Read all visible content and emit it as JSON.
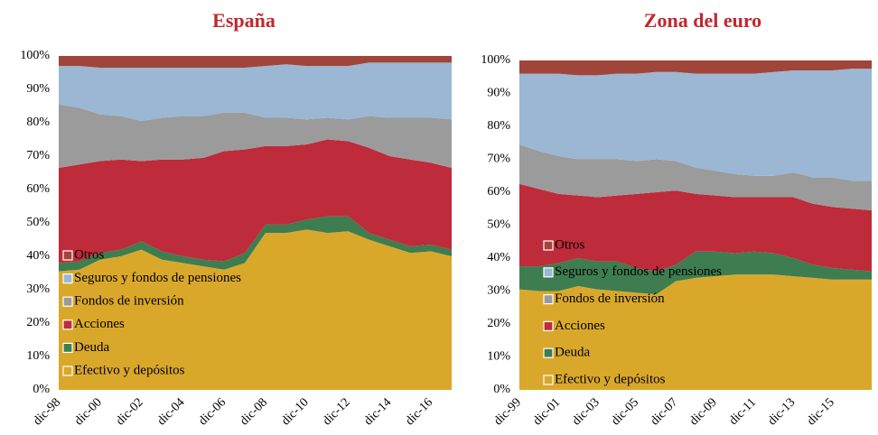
{
  "chart_data": [
    {
      "type": "stacked_area",
      "title": "España",
      "categories": [
        "dic-98",
        null,
        "dic-00",
        null,
        "dic-02",
        null,
        "dic-04",
        null,
        "dic-06",
        null,
        "dic-08",
        null,
        "dic-10",
        null,
        "dic-12",
        null,
        "dic-14",
        null,
        "dic-16",
        null
      ],
      "series": [
        {
          "name": "Efectivo y depósitos",
          "color": "#D9A82B",
          "values": [
            35.5,
            36,
            39,
            40,
            42,
            39,
            38,
            37,
            36,
            38,
            47,
            47,
            48,
            47,
            47.5,
            45,
            43,
            41,
            41.5,
            40
          ]
        },
        {
          "name": "Deuda",
          "color": "#3E7D4F",
          "values": [
            2.5,
            2.5,
            2,
            2,
            2.5,
            2.5,
            2,
            2,
            2.5,
            3,
            2.5,
            2.5,
            3,
            5,
            4.5,
            2,
            2,
            2,
            2,
            2
          ]
        },
        {
          "name": "Acciones",
          "color": "#BE2B3A",
          "values": [
            28.5,
            29,
            27.5,
            27,
            24,
            27.5,
            29,
            30.5,
            33,
            31,
            23.5,
            23.5,
            22.5,
            23,
            22.5,
            25.5,
            25,
            26,
            24.5,
            24.5
          ]
        },
        {
          "name": "Fondos de inversión",
          "color": "#9B9B9B",
          "values": [
            19,
            17,
            14,
            13,
            12,
            12.5,
            13,
            12.5,
            11.5,
            11,
            8.5,
            8.5,
            7.5,
            6.5,
            6.5,
            9.5,
            11.5,
            12.5,
            13.5,
            14.5
          ]
        },
        {
          "name": "Seguros y fondos de pensiones",
          "color": "#9BB7D4",
          "values": [
            11.5,
            12.5,
            14,
            14.5,
            16,
            15,
            14.5,
            14.5,
            13.5,
            13.5,
            15.5,
            16,
            16,
            15.5,
            16,
            16,
            16.5,
            16.5,
            16.5,
            17
          ]
        },
        {
          "name": "Otros",
          "color": "#A0453A",
          "values": [
            3,
            3,
            3.5,
            3.5,
            3.5,
            3.5,
            3.5,
            3.5,
            3.5,
            3.5,
            3,
            2.5,
            3,
            3,
            3,
            2,
            2,
            2,
            2,
            2
          ]
        }
      ],
      "ylim": [
        0,
        100
      ],
      "yticks": [
        {
          "value": 0,
          "label": "0%"
        },
        {
          "value": 10,
          "label": "10%"
        },
        {
          "value": 20,
          "label": "20%"
        },
        {
          "value": 30,
          "label": "30%"
        },
        {
          "value": 40,
          "label": "40%"
        },
        {
          "value": 50,
          "label": "50%"
        },
        {
          "value": 60,
          "label": "60%"
        },
        {
          "value": 70,
          "label": "70%"
        },
        {
          "value": 80,
          "label": "80%"
        },
        {
          "value": 90,
          "label": "90%"
        },
        {
          "value": 100,
          "label": "100%"
        }
      ]
    },
    {
      "type": "stacked_area",
      "title": "Zona del euro",
      "categories": [
        "dic-99",
        null,
        "dic-01",
        null,
        "dic-03",
        null,
        "dic-05",
        null,
        "dic-07",
        null,
        "dic-09",
        null,
        "dic-11",
        null,
        "dic-13",
        null,
        "dic-15",
        null,
        null
      ],
      "series": [
        {
          "name": "Efectivo y depósitos",
          "color": "#D9A82B",
          "values": [
            30.5,
            30,
            30,
            31.5,
            30.5,
            30,
            29.5,
            29,
            33,
            34,
            34.5,
            35,
            35,
            35,
            34.5,
            34,
            33.5,
            33.5,
            33.5
          ]
        },
        {
          "name": "Deuda",
          "color": "#3E7D4F",
          "values": [
            7,
            7.5,
            8.5,
            8.5,
            8.5,
            9,
            7.5,
            7,
            5,
            8,
            7.5,
            6.5,
            7,
            6.5,
            5.5,
            4,
            3.5,
            3,
            2.5
          ]
        },
        {
          "name": "Acciones",
          "color": "#BE2B3A",
          "values": [
            25,
            23.5,
            21,
            19,
            19.5,
            20,
            22.5,
            24,
            22.5,
            17.5,
            17,
            17,
            16.5,
            17,
            18.5,
            18.5,
            18.5,
            18.5,
            18.5
          ]
        },
        {
          "name": "Fondos de inversión",
          "color": "#9B9B9B",
          "values": [
            12,
            11.5,
            11.5,
            11,
            11.5,
            11,
            10,
            10,
            9,
            8,
            7.5,
            7,
            6.5,
            6.5,
            7.5,
            8,
            9,
            8.5,
            9
          ]
        },
        {
          "name": "Seguros y fondos de pensiones",
          "color": "#9BB7D4",
          "values": [
            21.5,
            23.5,
            25,
            25.5,
            25.5,
            26,
            26.5,
            26.5,
            27,
            28.5,
            29.5,
            30.5,
            31,
            31.5,
            31,
            32.5,
            32.5,
            34,
            34
          ]
        },
        {
          "name": "Otros",
          "color": "#A0453A",
          "values": [
            4,
            4,
            4,
            4.5,
            4.5,
            4,
            4,
            3.5,
            3.5,
            4,
            4,
            4,
            4,
            3.5,
            3,
            3,
            3,
            2.5,
            2.5
          ]
        }
      ],
      "ylim": [
        0,
        100
      ],
      "yticks": [
        {
          "value": 0,
          "label": "0%"
        },
        {
          "value": 10,
          "label": "10%"
        },
        {
          "value": 20,
          "label": "20%"
        },
        {
          "value": 30,
          "label": "30%"
        },
        {
          "value": 40,
          "label": "40%"
        },
        {
          "value": 50,
          "label": "50%"
        },
        {
          "value": 60,
          "label": "60%"
        },
        {
          "value": 70,
          "label": "70%"
        },
        {
          "value": 80,
          "label": "80%"
        },
        {
          "value": 90,
          "label": "90%"
        },
        {
          "value": 100,
          "label": "100%"
        }
      ]
    }
  ]
}
